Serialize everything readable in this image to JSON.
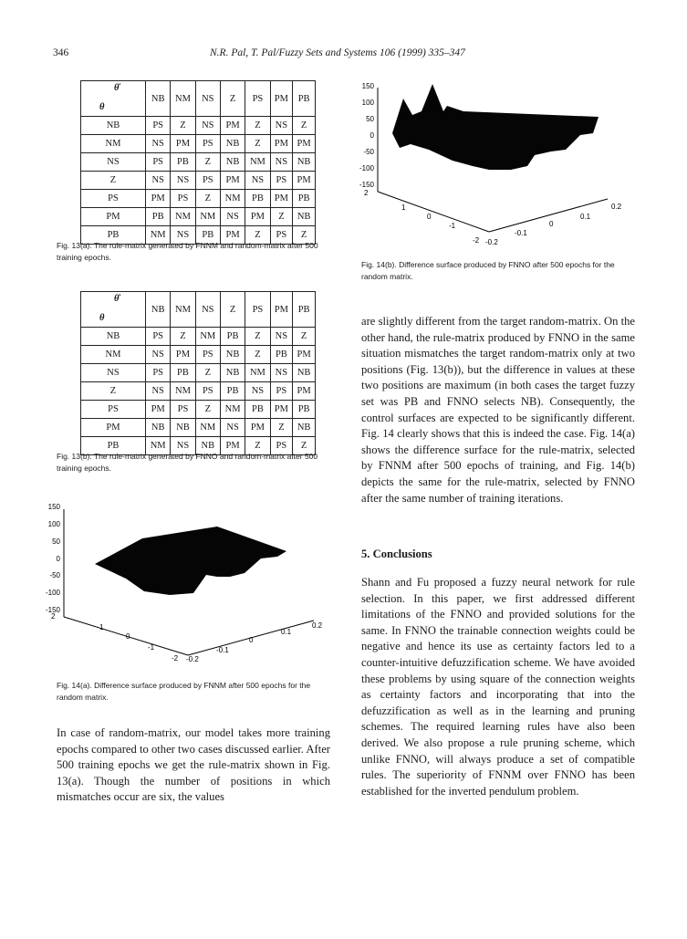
{
  "header": {
    "page_number": "346",
    "running_head": "N.R. Pal, T. Pal/Fuzzy Sets and Systems 106 (1999) 335–347"
  },
  "table_a": {
    "corner_top": "θ̇",
    "corner_bottom": "θ",
    "columns": [
      "NB",
      "NM",
      "NS",
      "Z",
      "PS",
      "PM",
      "PB"
    ],
    "rows": [
      {
        "label": "NB",
        "cells": [
          "PS",
          "Z",
          "NS",
          "PM",
          "Z",
          "NS",
          "Z"
        ]
      },
      {
        "label": "NM",
        "cells": [
          "NS",
          "PM",
          "PS",
          "NB",
          "Z",
          "PM",
          "PM"
        ]
      },
      {
        "label": "NS",
        "cells": [
          "PS",
          "PB",
          "Z",
          "NB",
          "NM",
          "NS",
          "NB"
        ]
      },
      {
        "label": "Z",
        "cells": [
          "NS",
          "NS",
          "PS",
          "PM",
          "NS",
          "PS",
          "PM"
        ]
      },
      {
        "label": "PS",
        "cells": [
          "PM",
          "PS",
          "Z",
          "NM",
          "PB",
          "PM",
          "PB"
        ]
      },
      {
        "label": "PM",
        "cells": [
          "PB",
          "NM",
          "NM",
          "NS",
          "PM",
          "Z",
          "NB"
        ]
      },
      {
        "label": "PB",
        "cells": [
          "NM",
          "NS",
          "PB",
          "PM",
          "Z",
          "PS",
          "Z"
        ]
      }
    ],
    "caption": "Fig. 13(a). The rule-matrix generated by FNNM and random-matrix after 500 training epochs."
  },
  "table_b": {
    "corner_top": "θ̇",
    "corner_bottom": "θ",
    "columns": [
      "NB",
      "NM",
      "NS",
      "Z",
      "PS",
      "PM",
      "PB"
    ],
    "rows": [
      {
        "label": "NB",
        "cells": [
          "PS",
          "Z",
          "NM",
          "PB",
          "Z",
          "NS",
          "Z"
        ]
      },
      {
        "label": "NM",
        "cells": [
          "NS",
          "PM",
          "PS",
          "NB",
          "Z",
          "PB",
          "PM"
        ]
      },
      {
        "label": "NS",
        "cells": [
          "PS",
          "PB",
          "Z",
          "NB",
          "NM",
          "NS",
          "NB"
        ]
      },
      {
        "label": "Z",
        "cells": [
          "NS",
          "NM",
          "PS",
          "PB",
          "NS",
          "PS",
          "PM"
        ]
      },
      {
        "label": "PS",
        "cells": [
          "PM",
          "PS",
          "Z",
          "NM",
          "PB",
          "PM",
          "PB"
        ]
      },
      {
        "label": "PM",
        "cells": [
          "NB",
          "NB",
          "NM",
          "NS",
          "PM",
          "Z",
          "NB"
        ]
      },
      {
        "label": "PB",
        "cells": [
          "NM",
          "NS",
          "NB",
          "PM",
          "Z",
          "PS",
          "Z"
        ]
      }
    ],
    "caption": "Fig. 13(b). The rule-matrix generated by FNNO and random-matrix after 500 training epochs."
  },
  "fig14a": {
    "z_ticks": [
      "150",
      "100",
      "50",
      "0",
      "-50",
      "-100",
      "-150"
    ],
    "x_ticks": [
      "2",
      "1",
      "0",
      "-1",
      "-2"
    ],
    "y_ticks": [
      "-0.2",
      "-0.1",
      "0",
      "0.1",
      "0.2"
    ],
    "caption": "Fig. 14(a). Difference surface produced by FNNM after 500 epochs for the random matrix."
  },
  "fig14b": {
    "z_ticks": [
      "150",
      "100",
      "50",
      "0",
      "-50",
      "-100",
      "-150"
    ],
    "x_ticks": [
      "2",
      "1",
      "0",
      "-1",
      "-2"
    ],
    "y_ticks": [
      "-0.2",
      "-0.1",
      "0",
      "0.1",
      "0.2"
    ],
    "caption": "Fig. 14(b). Difference surface produced by FNNO after 500 epochs for the random matrix."
  },
  "left_paragraph": "In case of random-matrix, our model takes more training epochs compared to other two cases discussed earlier. After 500 training epochs we get the rule-matrix shown in Fig. 13(a). Though the number of positions in which mismatches occur are six, the values",
  "right_paragraph": "are slightly different from the target random-matrix. On the other hand, the rule-matrix produced by FNNO in the same situation mismatches the target random-matrix only at two positions (Fig. 13(b)), but the difference in values at these two positions are maximum (in both cases the target fuzzy set was PB and FNNO selects NB). Consequently, the control surfaces are expected to be significantly different. Fig. 14 clearly shows that this is indeed the case. Fig. 14(a) shows the difference surface for the rule-matrix, selected by FNNM after 500 epochs of training, and Fig. 14(b) depicts the same for the rule-matrix, selected by FNNO after the same number of training iterations.",
  "section_heading": "5. Conclusions",
  "conclusion_paragraph": "Shann and Fu proposed a fuzzy neural network for rule selection. In this paper, we first addressed different limitations of the FNNO and provided solutions for the same. In FNNO the trainable connection weights could be negative and hence its use as certainty factors led to a counter-intuitive defuzzification scheme. We have avoided these problems by using square of the connection weights as certainty factors and incorporating that into the defuzzification as well as in the learning and pruning schemes. The required learning rules have also been derived. We also propose a rule pruning scheme, which unlike FNNO, will always produce a set of compatible rules. The superiority of FNNM over FNNO has been established for the inverted pendulum problem."
}
